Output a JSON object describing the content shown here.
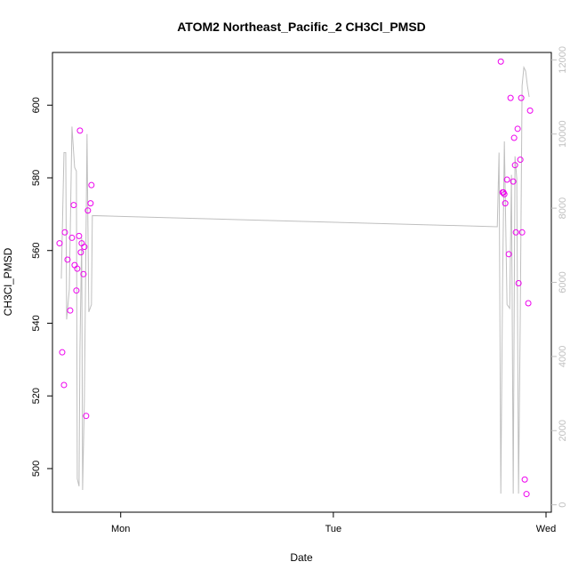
{
  "chart_data": {
    "type": "scatter",
    "title": "ATOM2 Northeast_Pacific_2 CH3Cl_PMSD",
    "xlabel": "Date",
    "ylabel": "CH3Cl_PMSD",
    "x_ticks": [
      {
        "label": "Mon",
        "value": 24
      },
      {
        "label": "Tue",
        "value": 48
      },
      {
        "label": "Wed",
        "value": 72
      }
    ],
    "x_unit": "hours since Sunday 00:00",
    "xlim": [
      16.3,
      72.6
    ],
    "ylim": [
      488,
      614.5
    ],
    "y_ticks": [
      500,
      520,
      540,
      560,
      580,
      600
    ],
    "y2lim": [
      -200,
      12200
    ],
    "y2_ticks": [
      0,
      2000,
      4000,
      6000,
      8000,
      10000,
      12000
    ],
    "colors": {
      "points": "#ee00ee",
      "line": "#bfbfbf",
      "axis": "#000000",
      "axis2": "#bfbfbf"
    },
    "series": [
      {
        "name": "",
        "kind": "points",
        "axis": "left",
        "points": [
          [
            17.1,
            562
          ],
          [
            17.4,
            532
          ],
          [
            17.6,
            523
          ],
          [
            17.7,
            565
          ],
          [
            18.0,
            557.5
          ],
          [
            18.3,
            543.5
          ],
          [
            18.5,
            563.5
          ],
          [
            18.7,
            572.5
          ],
          [
            18.8,
            556
          ],
          [
            19.0,
            549
          ],
          [
            19.1,
            555
          ],
          [
            19.3,
            564
          ],
          [
            19.4,
            593
          ],
          [
            19.5,
            559.5
          ],
          [
            19.6,
            562
          ],
          [
            19.8,
            553.5
          ],
          [
            19.9,
            561
          ],
          [
            20.1,
            514.5
          ],
          [
            20.3,
            571
          ],
          [
            20.6,
            573
          ],
          [
            20.7,
            578
          ]
        ]
      },
      {
        "name": "",
        "kind": "points",
        "axis": "left",
        "points": [
          [
            66.9,
            612
          ],
          [
            67.1,
            576
          ],
          [
            67.2,
            576
          ],
          [
            67.3,
            575.5
          ],
          [
            67.4,
            573
          ],
          [
            67.6,
            579.5
          ],
          [
            67.8,
            559
          ],
          [
            68.0,
            602
          ],
          [
            68.3,
            579
          ],
          [
            68.4,
            591
          ],
          [
            68.5,
            583.5
          ],
          [
            68.6,
            565
          ],
          [
            68.8,
            593.5
          ],
          [
            68.9,
            551
          ],
          [
            69.1,
            585
          ],
          [
            69.2,
            602
          ],
          [
            69.3,
            565
          ],
          [
            69.6,
            497
          ],
          [
            69.8,
            493
          ],
          [
            70.0,
            545.5
          ],
          [
            70.2,
            598.5
          ]
        ]
      },
      {
        "name": "",
        "kind": "line",
        "axis": "right",
        "points": [
          [
            17.3,
            6100
          ],
          [
            17.6,
            9500
          ],
          [
            17.8,
            9500
          ],
          [
            17.9,
            5000
          ],
          [
            18.2,
            5800
          ],
          [
            18.5,
            10200
          ],
          [
            18.8,
            9100
          ],
          [
            19.0,
            9000
          ],
          [
            19.1,
            700
          ],
          [
            19.3,
            500
          ],
          [
            19.4,
            4200
          ],
          [
            19.6,
            7200
          ],
          [
            19.7,
            400
          ],
          [
            19.9,
            2800
          ],
          [
            20.2,
            10000
          ],
          [
            20.4,
            5200
          ],
          [
            20.7,
            5400
          ],
          [
            20.8,
            7800
          ],
          [
            66.5,
            7500
          ],
          [
            66.7,
            9500
          ],
          [
            66.9,
            300
          ],
          [
            67.1,
            6000
          ],
          [
            67.3,
            9800
          ],
          [
            67.6,
            5400
          ],
          [
            67.9,
            5300
          ],
          [
            68.1,
            8900
          ],
          [
            68.3,
            300
          ],
          [
            68.5,
            9400
          ],
          [
            68.7,
            8800
          ],
          [
            68.9,
            300
          ],
          [
            69.1,
            5200
          ],
          [
            69.3,
            11300
          ],
          [
            69.5,
            11800
          ],
          [
            69.7,
            11700
          ],
          [
            69.9,
            11300
          ],
          [
            70.1,
            11000
          ]
        ]
      }
    ],
    "grid": false,
    "legend": "none"
  }
}
